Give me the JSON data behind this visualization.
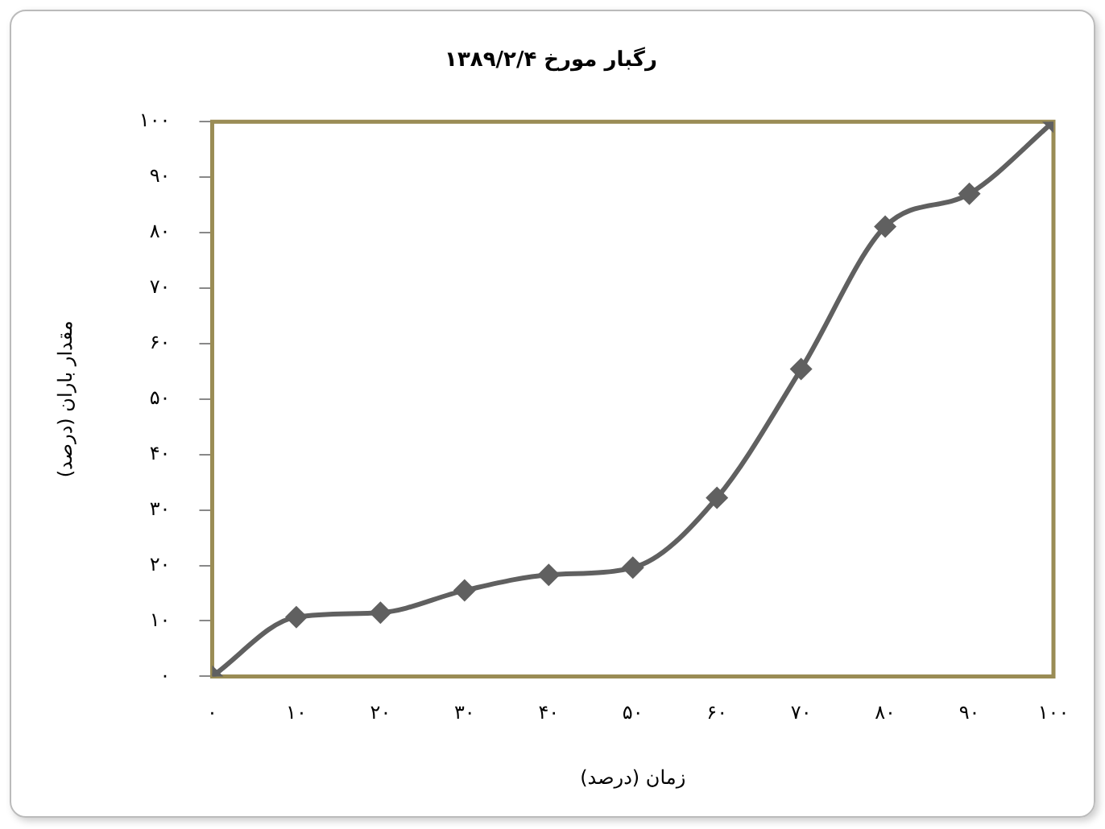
{
  "chart_data": {
    "type": "line",
    "title": "رگبار مورخ ۱۳۸۹/۲/۴",
    "xlabel": "زمان (درصد)",
    "ylabel": "مقدار باران (درصد)",
    "x": [
      0,
      10,
      20,
      30,
      40,
      50,
      60,
      70,
      80,
      90,
      100
    ],
    "series": [
      {
        "color": "#606060",
        "values": [
          0,
          10.7,
          11.5,
          15.5,
          18.3,
          19.6,
          32.2,
          55.4,
          81.1,
          87,
          100
        ]
      }
    ],
    "xlim": [
      0,
      100
    ],
    "ylim": [
      0,
      100
    ],
    "xticks": [
      {
        "value": 0,
        "label": "۰"
      },
      {
        "value": 10,
        "label": "۱۰"
      },
      {
        "value": 20,
        "label": "۲۰"
      },
      {
        "value": 30,
        "label": "۳۰"
      },
      {
        "value": 40,
        "label": "۴۰"
      },
      {
        "value": 50,
        "label": "۵۰"
      },
      {
        "value": 60,
        "label": "۶۰"
      },
      {
        "value": 70,
        "label": "۷۰"
      },
      {
        "value": 80,
        "label": "۸۰"
      },
      {
        "value": 90,
        "label": "۹۰"
      },
      {
        "value": 100,
        "label": "۱۰۰"
      }
    ],
    "yticks": [
      {
        "value": 0,
        "label": "۰"
      },
      {
        "value": 10,
        "label": "۱۰"
      },
      {
        "value": 20,
        "label": "۲۰"
      },
      {
        "value": 30,
        "label": "۳۰"
      },
      {
        "value": 40,
        "label": "۴۰"
      },
      {
        "value": 50,
        "label": "۵۰"
      },
      {
        "value": 60,
        "label": "۶۰"
      },
      {
        "value": 70,
        "label": "۷۰"
      },
      {
        "value": 80,
        "label": "۸۰"
      },
      {
        "value": 90,
        "label": "۹۰"
      },
      {
        "value": 100,
        "label": "۱۰۰"
      }
    ],
    "grid": false,
    "legend": false,
    "marker": "diamond",
    "line_style": "solid"
  }
}
